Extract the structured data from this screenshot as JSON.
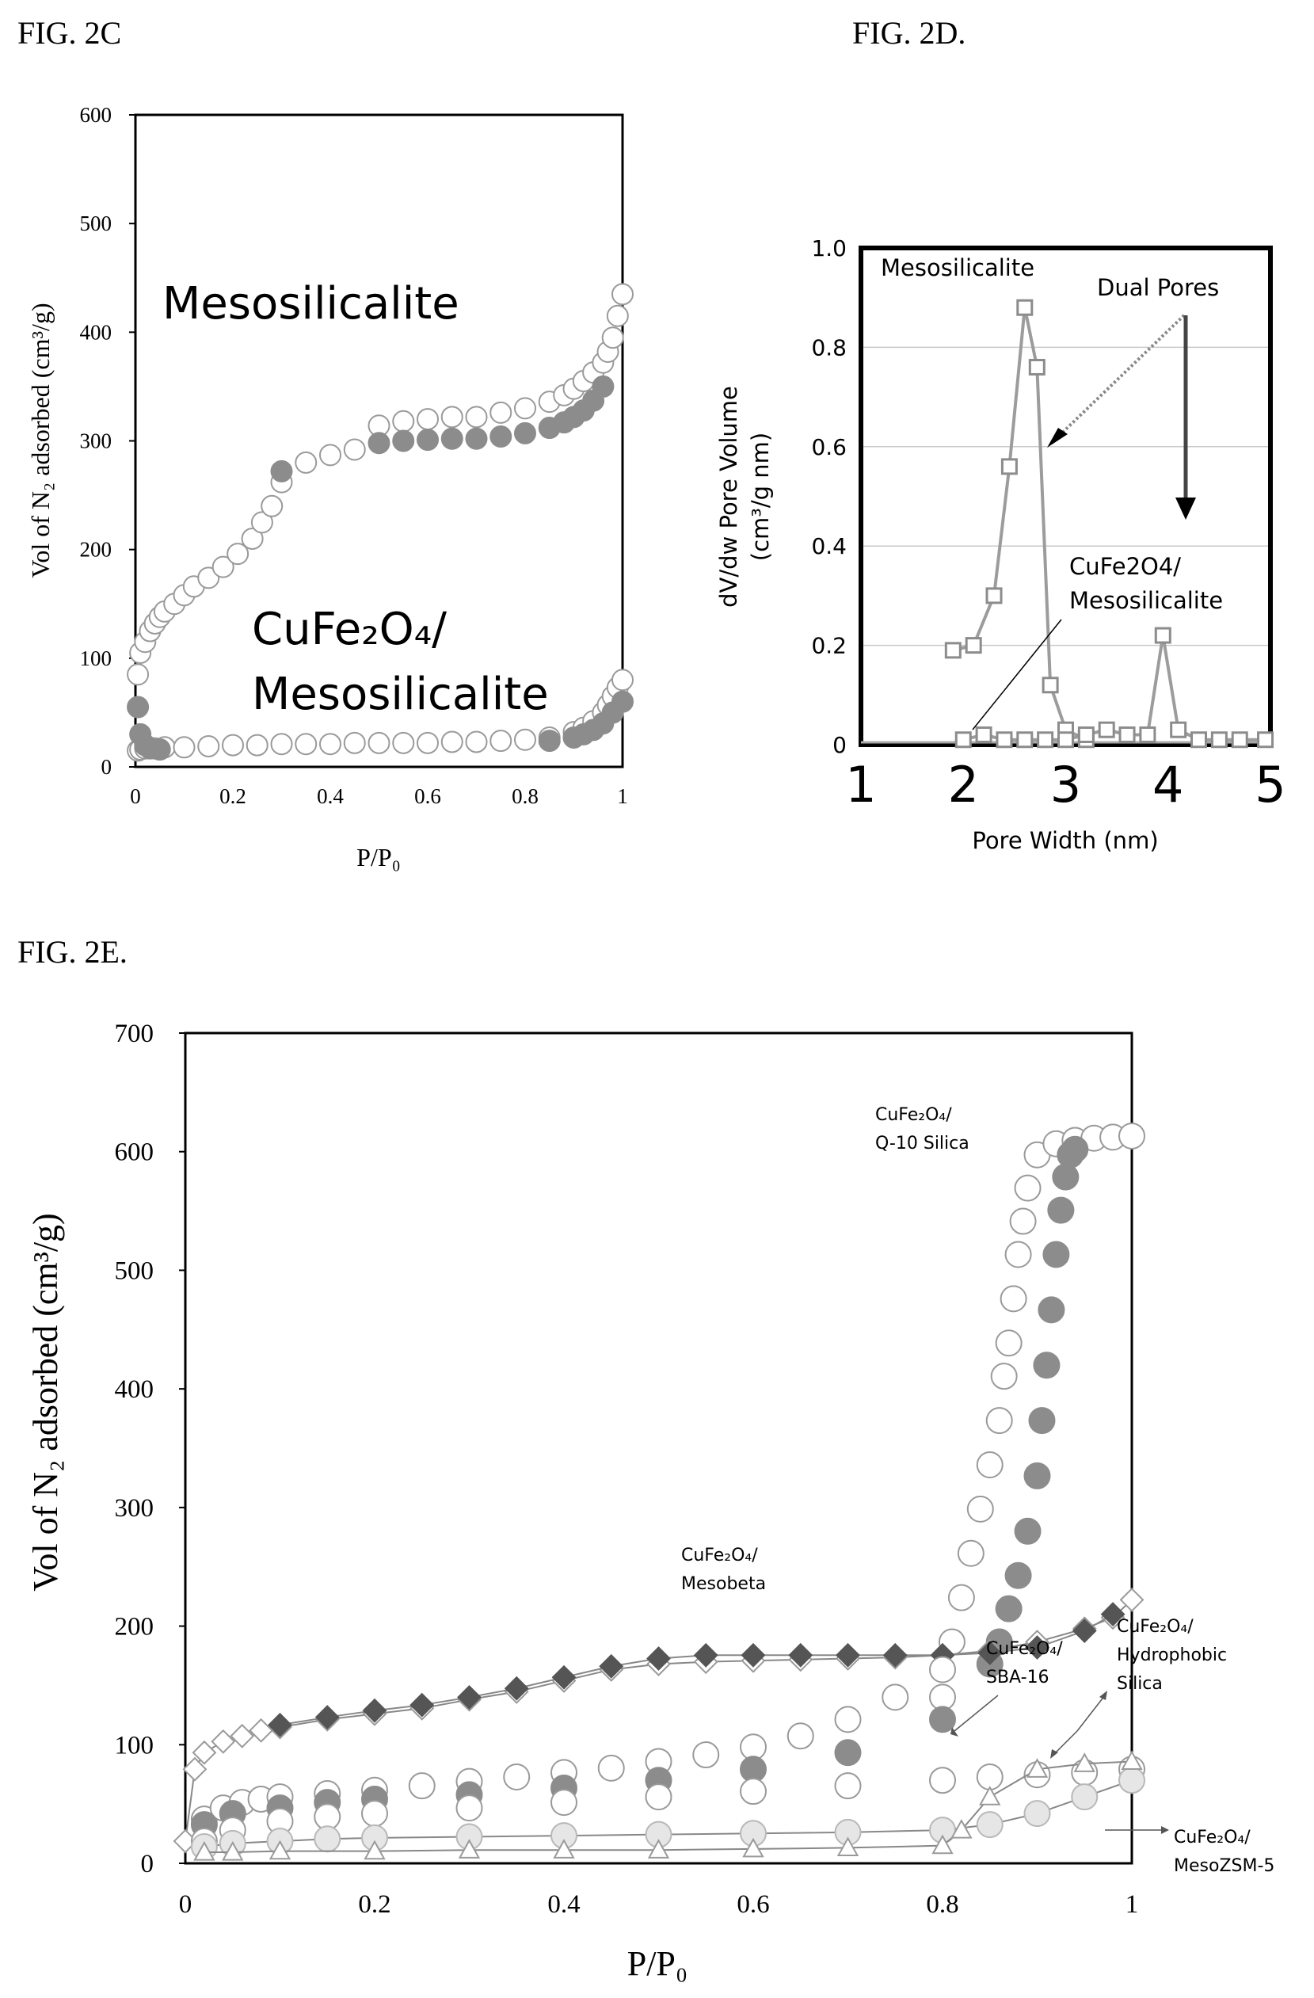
{
  "figure_labels": {
    "c": "FIG. 2C",
    "d": "FIG. 2D.",
    "e": "FIG. 2E."
  },
  "chart_data": [
    {
      "id": "fig2c",
      "type": "scatter",
      "xlabel": "P/P₀",
      "ylabel": "Vol of N₂ adsorbed (cm³/g)",
      "xlim": [
        0,
        1
      ],
      "ylim": [
        0,
        600
      ],
      "xticks": [
        "0",
        "0.2",
        "0.4",
        "0.6",
        "0.8",
        "1"
      ],
      "yticks": [
        "0",
        "100",
        "200",
        "300",
        "400",
        "500",
        "600"
      ],
      "grid": false,
      "annotations": {
        "meso": "Mesosilicalite",
        "cufe_line1": "CuFe₂O₄/",
        "cufe_line2": "Mesosilicalite"
      },
      "series": [
        {
          "marker": "circle-open",
          "x": [
            0.005,
            0.01,
            0.02,
            0.03,
            0.04,
            0.05,
            0.06,
            0.08,
            0.1,
            0.12,
            0.15,
            0.18,
            0.21,
            0.24,
            0.26,
            0.28,
            0.3,
            0.35,
            0.4,
            0.45,
            0.5,
            0.55,
            0.6,
            0.65,
            0.7,
            0.75,
            0.8,
            0.85,
            0.88,
            0.9,
            0.92,
            0.94,
            0.96,
            0.97,
            0.98,
            0.99,
            1.0
          ],
          "y": [
            85,
            105,
            115,
            125,
            132,
            138,
            143,
            150,
            158,
            166,
            174,
            184,
            196,
            210,
            225,
            240,
            262,
            280,
            287,
            292,
            314,
            318,
            320,
            322,
            322,
            326,
            330,
            336,
            342,
            348,
            355,
            363,
            372,
            382,
            395,
            415,
            435
          ]
        },
        {
          "marker": "circle-filled",
          "x": [
            0.3,
            0.5,
            0.55,
            0.6,
            0.65,
            0.7,
            0.75,
            0.8,
            0.85,
            0.88,
            0.9,
            0.92,
            0.94,
            0.96
          ],
          "y": [
            272,
            298,
            300,
            301,
            302,
            302,
            304,
            307,
            312,
            317,
            322,
            328,
            337,
            350
          ]
        },
        {
          "marker": "circle-open",
          "x": [
            0.005,
            0.01,
            0.02,
            0.04,
            0.06,
            0.1,
            0.15,
            0.2,
            0.25,
            0.3,
            0.35,
            0.4,
            0.45,
            0.5,
            0.55,
            0.6,
            0.65,
            0.7,
            0.75,
            0.8,
            0.85,
            0.9,
            0.92,
            0.94,
            0.96,
            0.97,
            0.98,
            0.99,
            1.0
          ],
          "y": [
            15,
            16,
            17,
            17,
            18,
            18,
            19,
            20,
            20,
            21,
            21,
            21,
            22,
            22,
            22,
            22,
            23,
            23,
            24,
            25,
            27,
            32,
            36,
            42,
            50,
            57,
            65,
            73,
            80
          ]
        },
        {
          "marker": "circle-filled",
          "x": [
            0.005,
            0.01,
            0.02,
            0.03,
            0.05,
            0.85,
            0.9,
            0.92,
            0.94,
            0.96,
            0.98,
            1.0
          ],
          "y": [
            55,
            30,
            20,
            17,
            16,
            24,
            27,
            30,
            34,
            40,
            50,
            60
          ]
        }
      ]
    },
    {
      "id": "fig2d",
      "type": "line",
      "xlabel": "Pore Width (nm)",
      "ylabel": "dV/dw Pore Volume",
      "ylabel2": "(cm³/g nm)",
      "xlim": [
        1,
        5
      ],
      "ylim": [
        0,
        1.0
      ],
      "xticks": [
        "1",
        "2",
        "3",
        "4",
        "5"
      ],
      "yticks": [
        "0",
        "0.2",
        "0.4",
        "0.6",
        "0.8",
        "1.0"
      ],
      "grid": true,
      "annotations": {
        "meso": "Mesosilicalite",
        "dual": "Dual Pores",
        "cufe_line1": "CuFe2O4/",
        "cufe_line2": "Mesosilicalite"
      },
      "series": [
        {
          "name": "Mesosilicalite",
          "marker": "square-open",
          "x": [
            1.9,
            2.1,
            2.3,
            2.45,
            2.6,
            2.72,
            2.85,
            3.0,
            3.2
          ],
          "y": [
            0.19,
            0.2,
            0.3,
            0.56,
            0.88,
            0.76,
            0.12,
            0.03,
            0.01
          ]
        },
        {
          "name": "CuFe2O4/Mesosilicalite",
          "marker": "square-open",
          "x": [
            2.0,
            2.2,
            2.4,
            2.6,
            2.8,
            3.0,
            3.2,
            3.4,
            3.6,
            3.8,
            3.95,
            4.1,
            4.3,
            4.5,
            4.7,
            4.95
          ],
          "y": [
            0.01,
            0.02,
            0.01,
            0.01,
            0.01,
            0.01,
            0.02,
            0.03,
            0.02,
            0.02,
            0.22,
            0.03,
            0.01,
            0.01,
            0.01,
            0.01
          ]
        }
      ]
    },
    {
      "id": "fig2e",
      "type": "scatter",
      "xlabel": "P/P₀",
      "ylabel": "Vol of N₂ adsorbed (cm³/g)",
      "xlim": [
        0,
        1
      ],
      "ylim": [
        0,
        750
      ],
      "xticks": [
        "0",
        "0.2",
        "0.4",
        "0.6",
        "0.8",
        "1"
      ],
      "yticks": [
        "0",
        "100",
        "200",
        "300",
        "400",
        "500",
        "600",
        "700"
      ],
      "grid": false,
      "annotations": {
        "q10_line1": "CuFe₂O₄/",
        "q10_line2": "Q-10 Silica",
        "mesobeta_line1": "CuFe₂O₄/",
        "mesobeta_line2": "Mesobeta",
        "sba_line1": "CuFe₂O₄/",
        "sba_line2": "SBA-16",
        "hydro_line1": "CuFe₂O₄/",
        "hydro_line2": "Hydrophobic",
        "hydro_line3": "Silica",
        "zsm_line1": "CuFe₂O₄/",
        "zsm_line2": "MesoZSM-5"
      },
      "series": [
        {
          "marker": "circle-open",
          "x": [
            0.8,
            0.81,
            0.82,
            0.83,
            0.84,
            0.85,
            0.86,
            0.865,
            0.87,
            0.875,
            0.88,
            0.885,
            0.89,
            0.9,
            0.92,
            0.94,
            0.96,
            0.98,
            1.0
          ],
          "y": [
            150,
            200,
            240,
            280,
            320,
            360,
            400,
            440,
            470,
            510,
            550,
            580,
            610,
            640,
            650,
            653,
            655,
            656,
            657
          ]
        },
        {
          "marker": "circle-filled",
          "x": [
            0.85,
            0.86,
            0.87,
            0.88,
            0.89,
            0.9,
            0.905,
            0.91,
            0.915,
            0.92,
            0.925,
            0.93,
            0.935,
            0.94
          ],
          "y": [
            180,
            200,
            230,
            260,
            300,
            350,
            400,
            450,
            500,
            550,
            590,
            620,
            640,
            645
          ]
        },
        {
          "marker": "diamond-open",
          "x": [
            0.0,
            0.01,
            0.02,
            0.04,
            0.06,
            0.08,
            0.1,
            0.15,
            0.2,
            0.25,
            0.3,
            0.35,
            0.4,
            0.45,
            0.5,
            0.55,
            0.6,
            0.65,
            0.7,
            0.75,
            0.8,
            0.85,
            0.9,
            0.95,
            0.98,
            1.0
          ],
          "y": [
            20,
            85,
            100,
            110,
            115,
            120,
            123,
            130,
            135,
            140,
            148,
            155,
            165,
            175,
            180,
            182,
            183,
            184,
            185,
            186,
            188,
            192,
            200,
            212,
            222,
            238
          ]
        },
        {
          "marker": "diamond-filled",
          "x": [
            0.1,
            0.15,
            0.2,
            0.25,
            0.3,
            0.35,
            0.4,
            0.45,
            0.5,
            0.55,
            0.6,
            0.65,
            0.7,
            0.75,
            0.8,
            0.85,
            0.9,
            0.95,
            0.98
          ],
          "y": [
            125,
            132,
            138,
            143,
            150,
            158,
            168,
            178,
            185,
            188,
            188,
            188,
            188,
            188,
            188,
            190,
            195,
            210,
            225
          ]
        },
        {
          "marker": "circle-open",
          "x": [
            0.02,
            0.04,
            0.06,
            0.08,
            0.1,
            0.15,
            0.2,
            0.25,
            0.3,
            0.35,
            0.4,
            0.45,
            0.5,
            0.55,
            0.6,
            0.65,
            0.7,
            0.75,
            0.8
          ],
          "y": [
            40,
            50,
            55,
            58,
            60,
            63,
            66,
            70,
            74,
            78,
            82,
            86,
            92,
            98,
            105,
            115,
            130,
            150,
            175
          ]
        },
        {
          "marker": "circle-filled",
          "x": [
            0.02,
            0.05,
            0.1,
            0.15,
            0.2,
            0.3,
            0.4,
            0.5,
            0.6,
            0.7,
            0.8
          ],
          "y": [
            35,
            45,
            50,
            55,
            58,
            62,
            68,
            75,
            85,
            100,
            130
          ]
        },
        {
          "marker": "circle-open",
          "x": [
            0.02,
            0.05,
            0.1,
            0.15,
            0.2,
            0.3,
            0.4,
            0.5,
            0.6,
            0.7,
            0.8,
            0.85,
            0.9,
            0.95,
            1.0
          ],
          "y": [
            20,
            30,
            38,
            42,
            45,
            50,
            55,
            60,
            65,
            70,
            75,
            78,
            80,
            82,
            85
          ]
        },
        {
          "marker": "circle-light",
          "x": [
            0.02,
            0.05,
            0.1,
            0.15,
            0.2,
            0.3,
            0.4,
            0.5,
            0.6,
            0.7,
            0.8,
            0.85,
            0.9,
            0.95,
            1.0
          ],
          "y": [
            15,
            18,
            20,
            22,
            23,
            24,
            25,
            26,
            27,
            28,
            30,
            35,
            45,
            60,
            75
          ]
        },
        {
          "marker": "triangle-open",
          "x": [
            0.02,
            0.05,
            0.1,
            0.2,
            0.3,
            0.4,
            0.5,
            0.6,
            0.7,
            0.8,
            0.82,
            0.85,
            0.9,
            0.95,
            1.0
          ],
          "y": [
            10,
            10,
            11,
            11,
            12,
            12,
            12,
            13,
            14,
            16,
            30,
            60,
            85,
            90,
            92
          ]
        }
      ]
    }
  ]
}
